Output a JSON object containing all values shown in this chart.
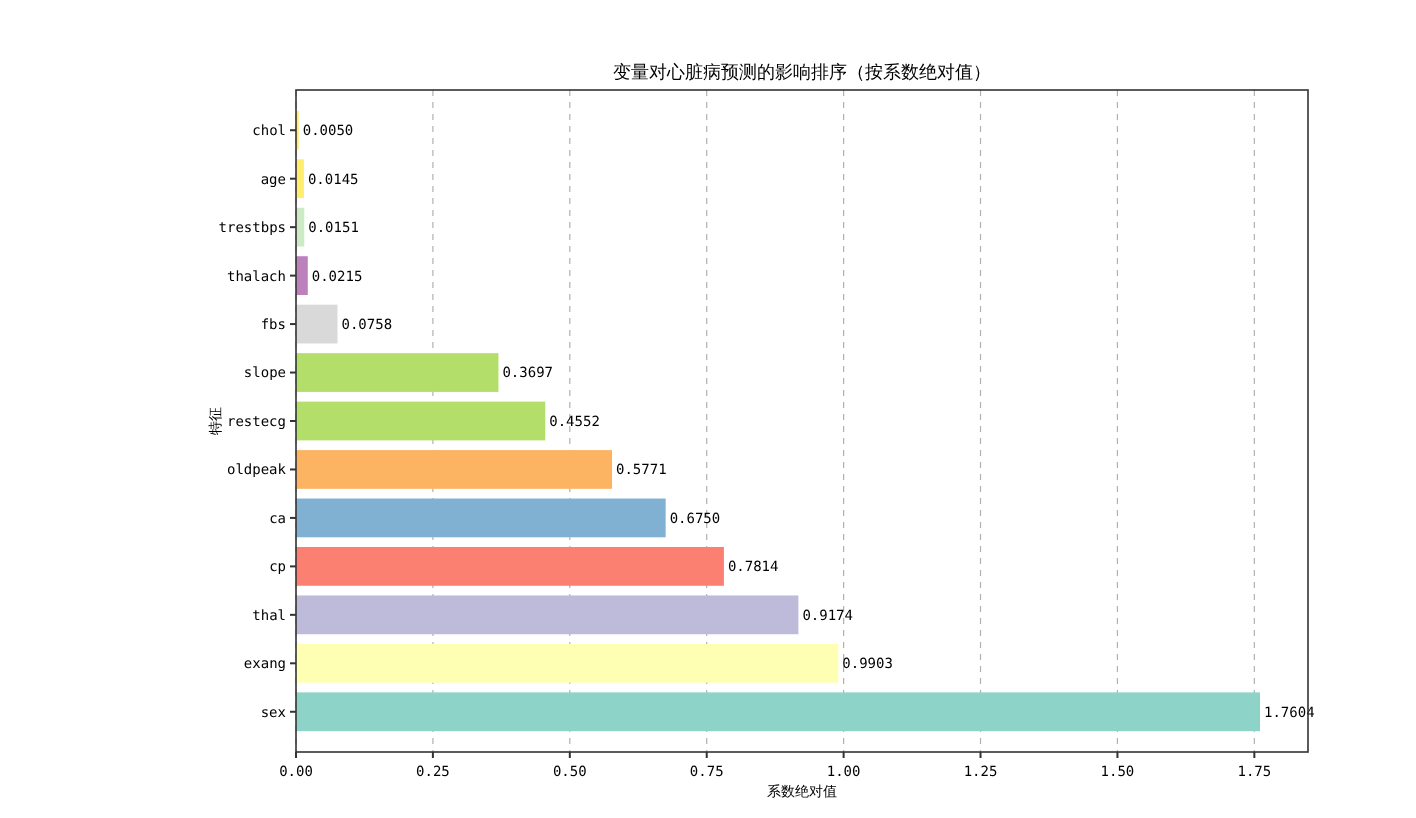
{
  "chart_data": {
    "type": "bar",
    "orientation": "horizontal",
    "title": "变量对心脏病预测的影响排序（按系数绝对值）",
    "xlabel": "系数绝对值",
    "ylabel": "特征",
    "categories": [
      "chol",
      "age",
      "trestbps",
      "thalach",
      "fbs",
      "slope",
      "restecg",
      "oldpeak",
      "ca",
      "cp",
      "thal",
      "exang",
      "sex"
    ],
    "values": [
      0.005,
      0.0145,
      0.0151,
      0.0215,
      0.0758,
      0.3697,
      0.4552,
      0.5771,
      0.675,
      0.7814,
      0.9174,
      0.9903,
      1.7604
    ],
    "colors": [
      "#ffed6f",
      "#ffed6f",
      "#ccebc5",
      "#bc80bd",
      "#d9d9d9",
      "#b3de69",
      "#b3de69",
      "#fdb462",
      "#80b1d3",
      "#fb8072",
      "#bebada",
      "#ffffb3",
      "#8dd3c7"
    ],
    "value_labels": [
      "0.0050",
      "0.0145",
      "0.0151",
      "0.0215",
      "0.0758",
      "0.3697",
      "0.4552",
      "0.5771",
      "0.6750",
      "0.7814",
      "0.9174",
      "0.9903",
      "1.7604"
    ],
    "xlim": [
      0,
      1.848
    ],
    "xticks": [
      {
        "value": 0,
        "label": "0.00"
      },
      {
        "value": 0.25,
        "label": "0.25"
      },
      {
        "value": 0.5,
        "label": "0.50"
      },
      {
        "value": 0.75,
        "label": "0.75"
      },
      {
        "value": 1,
        "label": "1.00"
      },
      {
        "value": 1.25,
        "label": "1.25"
      },
      {
        "value": 1.5,
        "label": "1.50"
      },
      {
        "value": 1.75,
        "label": "1.75"
      }
    ],
    "grid": "x"
  }
}
